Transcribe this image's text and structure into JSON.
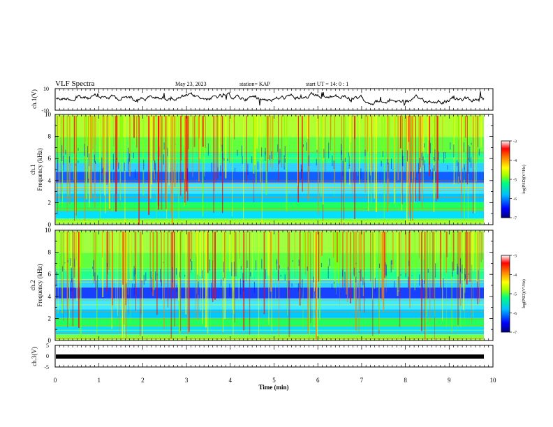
{
  "header": {
    "title": "VLF Spectra",
    "date": "May 23, 2023",
    "station": "station= KAP",
    "start": "start  UT  =   14: 0   : 1"
  },
  "panels": {
    "ch1_wave_label": "ch.1(V)",
    "ch1_spec_label": "ch.1",
    "ch2_spec_label": "ch.2",
    "freq_label": "Frequency (kHz)",
    "ch3_wave_label": "ch.3(V)"
  },
  "colorbar": {
    "label": "log(PSD)(V²/Hz)",
    "ticks": [
      "-3",
      "-4",
      "-5",
      "-6",
      "-7"
    ],
    "colors": [
      "#000080",
      "#0000ff",
      "#00c0ff",
      "#00ff80",
      "#a0ff00",
      "#ffff00",
      "#ff8000",
      "#ff0000",
      "#ffffff"
    ]
  },
  "chart_data": [
    {
      "type": "line",
      "name": "ch.1 waveform",
      "ylabel": "ch.1(V)",
      "ylim": [
        -10,
        10
      ],
      "yticks": [
        "10",
        "-10"
      ],
      "xlim": [
        0,
        10
      ]
    },
    {
      "type": "heatmap",
      "name": "ch.1 spectrogram",
      "ylabel": "Frequency (kHz)",
      "ylim": [
        0,
        10
      ],
      "yticks": [
        "10",
        "8",
        "6",
        "4",
        "2",
        "0"
      ],
      "xlim": [
        0,
        10
      ],
      "zlim": [
        -7,
        -3
      ],
      "zlabel": "log(PSD)(V²/Hz)"
    },
    {
      "type": "heatmap",
      "name": "ch.2 spectrogram",
      "ylabel": "Frequency (kHz)",
      "ylim": [
        0,
        10
      ],
      "yticks": [
        "10",
        "8",
        "6",
        "4",
        "2",
        "0"
      ],
      "xlim": [
        0,
        10
      ],
      "zlim": [
        -7,
        -3
      ],
      "zlabel": "log(PSD)(V²/Hz)"
    },
    {
      "type": "line",
      "name": "ch.3 waveform",
      "ylabel": "ch.3(V)",
      "ylim": [
        -5,
        5
      ],
      "yticks": [
        "5",
        "0",
        "-5"
      ],
      "xlim": [
        0,
        10
      ],
      "xlabel": "Time (min)",
      "xticks": [
        "0",
        "1",
        "2",
        "3",
        "4",
        "5",
        "6",
        "7",
        "8",
        "9",
        "10"
      ]
    }
  ]
}
